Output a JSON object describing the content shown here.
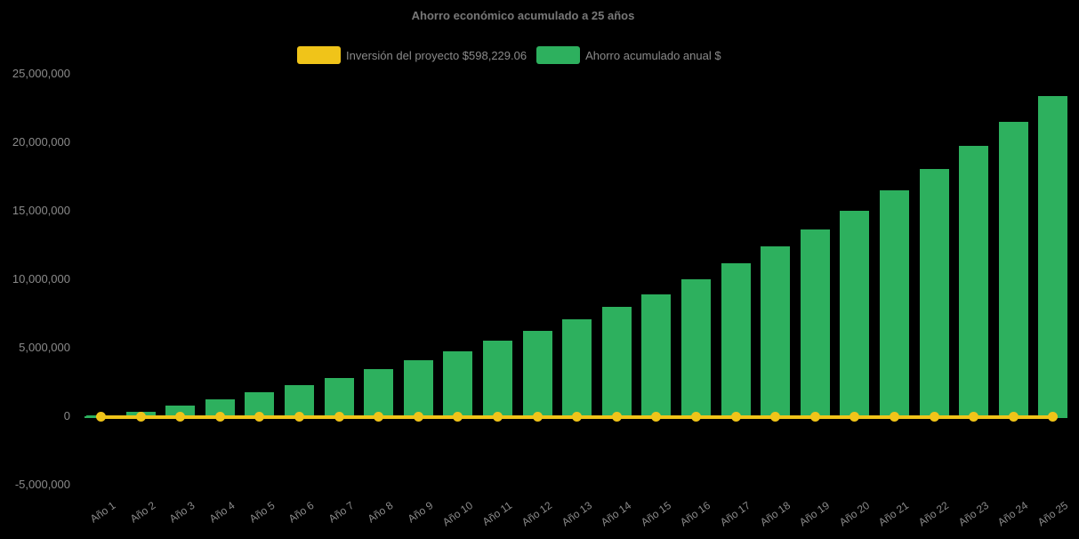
{
  "title": "Ahorro económico acumulado a 25 años",
  "legend": {
    "items": [
      {
        "label": "Inversión del proyecto $598,229.06",
        "color": "#f0c419",
        "type": "line"
      },
      {
        "label": "Ahorro acumulado anual $",
        "color": "#2db05e",
        "type": "bar"
      }
    ]
  },
  "chart_data": {
    "type": "bar",
    "title": "Ahorro económico acumulado a 25 años",
    "background": "#000000",
    "grid": false,
    "legend_position": "top",
    "xlabel": "",
    "ylabel": "",
    "ylim": [
      -5000000,
      25000000
    ],
    "y_tick_interval": 5000000,
    "y_ticks": [
      {
        "value": 25000000,
        "label": "25,000,000"
      },
      {
        "value": 20000000,
        "label": "20,000,000"
      },
      {
        "value": 15000000,
        "label": "15,000,000"
      },
      {
        "value": 10000000,
        "label": "10,000,000"
      },
      {
        "value": 5000000,
        "label": "5,000,000"
      },
      {
        "value": 0,
        "label": "0"
      },
      {
        "value": -5000000,
        "label": "-5,000,000"
      }
    ],
    "categories": [
      "Año 1",
      "Año 2",
      "Año 3",
      "Año 4",
      "Año 5",
      "Año 6",
      "Año 7",
      "Año 8",
      "Año 9",
      "Año 10",
      "Año 11",
      "Año 12",
      "Año 13",
      "Año 14",
      "Año 15",
      "Año 16",
      "Año 17",
      "Año 18",
      "Año 19",
      "Año 20",
      "Año 21",
      "Año 22",
      "Año 23",
      "Año 24",
      "Año 25"
    ],
    "series": [
      {
        "name": "Inversión del proyecto $598,229.06",
        "type": "line",
        "color": "#f0c419",
        "marker": "circle",
        "values": [
          598229.06,
          598229.06,
          598229.06,
          598229.06,
          598229.06,
          598229.06,
          598229.06,
          598229.06,
          598229.06,
          598229.06,
          598229.06,
          598229.06,
          598229.06,
          598229.06,
          598229.06,
          598229.06,
          598229.06,
          598229.06,
          598229.06,
          598229.06,
          598229.06,
          598229.06,
          598229.06,
          598229.06,
          598229.06
        ]
      },
      {
        "name": "Ahorro acumulado anual $",
        "type": "bar",
        "color": "#2db05e",
        "values": [
          60000,
          280000,
          730000,
          1200000,
          1690000,
          2210000,
          2780000,
          3410000,
          4060000,
          4700000,
          5480000,
          6230000,
          7070000,
          7980000,
          8890000,
          9950000,
          11150000,
          12350000,
          13620000,
          14980000,
          16450000,
          18000000,
          19680000,
          21470000,
          23330000
        ]
      }
    ]
  }
}
